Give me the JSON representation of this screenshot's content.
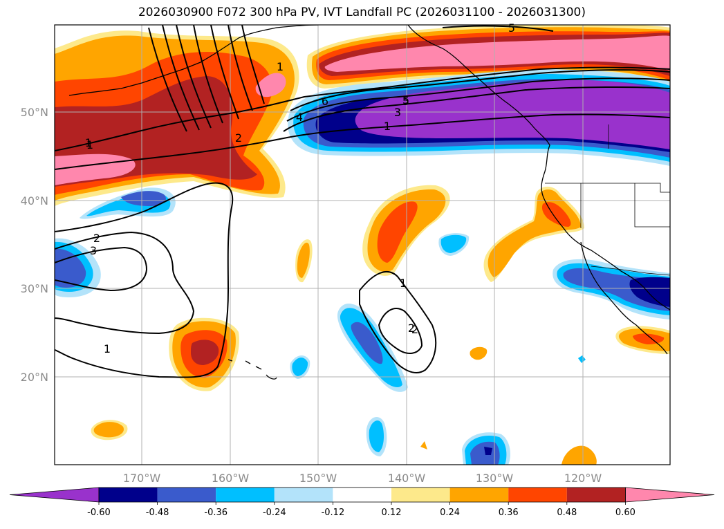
{
  "title": "2026030900 F072 300 hPa PV, IVT Landfall PC (2026031100 - 2026031300)",
  "axes": {
    "lon_ticks": [
      "170°W",
      "160°W",
      "150°W",
      "140°W",
      "130°W",
      "120°W"
    ],
    "lat_ticks": [
      "50°N",
      "40°N",
      "30°N",
      "20°N"
    ]
  },
  "colorbar": {
    "colors": [
      "#9932cc",
      "#00008b",
      "#3a5bcc",
      "#00bfff",
      "#b3e3fa",
      "#ffffff",
      "#fde98b",
      "#ffa500",
      "#ff4500",
      "#b22222",
      "#ff87ad"
    ],
    "labels": [
      "-0.60",
      "-0.48",
      "-0.36",
      "-0.24",
      "-0.12",
      "0.12",
      "0.24",
      "0.36",
      "0.48",
      "0.60"
    ]
  },
  "contour_labels": [
    "1",
    "2",
    "3",
    "4",
    "5",
    "6",
    "1",
    "2",
    "3",
    "1",
    "2",
    "1",
    "1",
    "2",
    "1",
    "5",
    "5",
    "3",
    "1"
  ]
}
